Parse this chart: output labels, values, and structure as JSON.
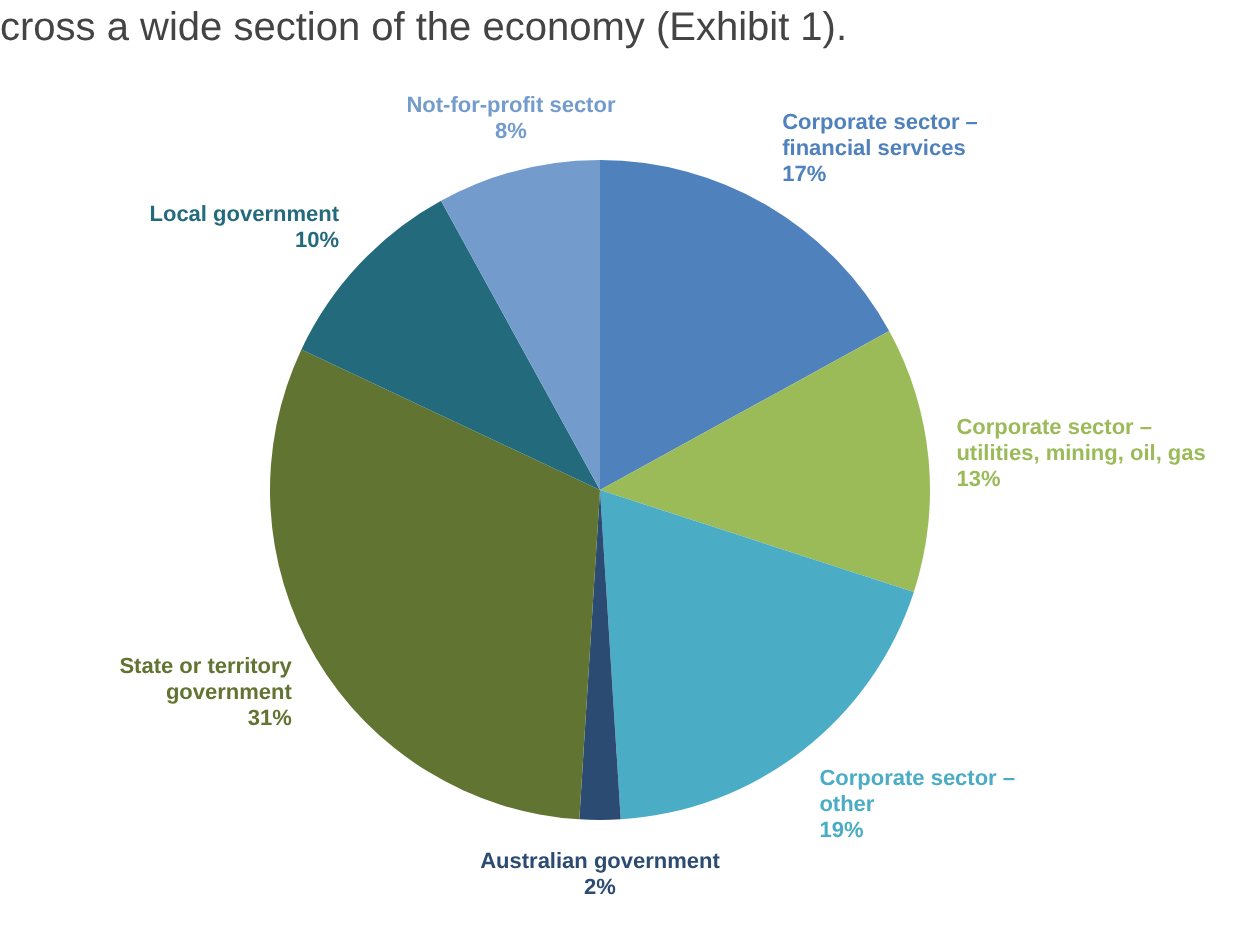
{
  "chart_data": {
    "type": "pie",
    "title": "cross a wide section of the economy (Exhibit 1).",
    "categories": [
      "Corporate sector –\nfinancial services",
      "Corporate sector –\nutilities, mining, oil, gas",
      "Corporate sector –\nother",
      "Australian government",
      "State or territory\ngovernment",
      "Local government",
      "Not-for-profit sector"
    ],
    "values": [
      17,
      13,
      19,
      2,
      31,
      10,
      8
    ],
    "colors": [
      "#4f81bd",
      "#9bbb59",
      "#4bacc6",
      "#2c4b72",
      "#617431",
      "#236a7c",
      "#739ccd"
    ],
    "value_labels": [
      "17%",
      "13%",
      "19%",
      "2%",
      "31%",
      "10%",
      "8%"
    ]
  }
}
